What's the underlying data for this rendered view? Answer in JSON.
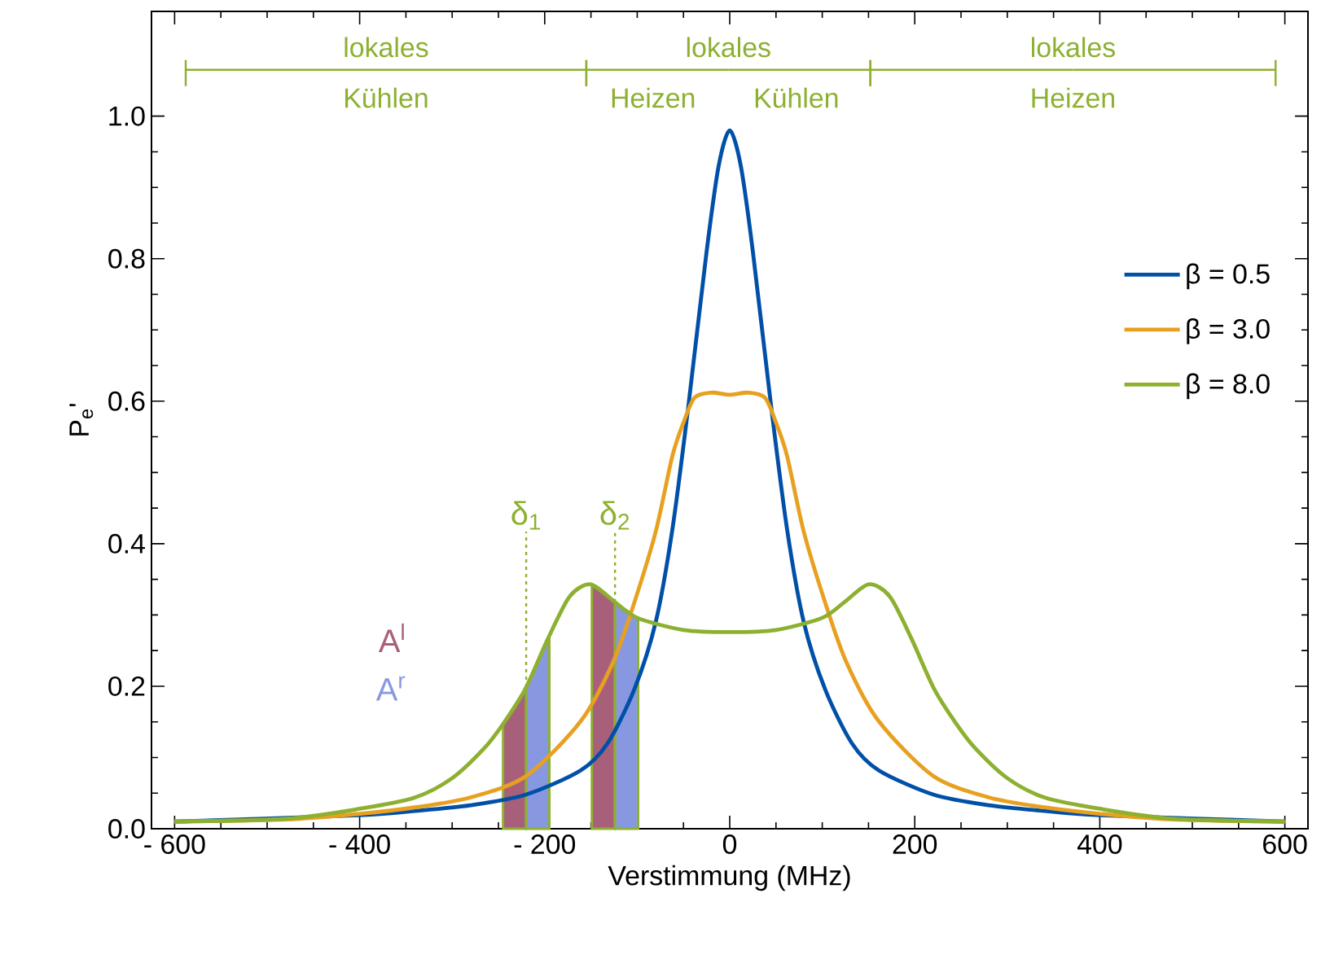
{
  "chart_data": {
    "type": "line",
    "xlabel": "Verstimmung (MHz)",
    "ylabel": "P$_{e}$'",
    "xlim": [
      -625,
      625
    ],
    "ylim": [
      0,
      1.147
    ],
    "xticks": [
      {
        "value": -600,
        "label": "- 600"
      },
      {
        "value": -400,
        "label": "- 400"
      },
      {
        "value": -200,
        "label": "- 200"
      },
      0,
      200,
      400,
      600
    ],
    "yticks": [
      {
        "value": 0,
        "label": "0.0"
      },
      {
        "value": 0.2,
        "label": "0.2"
      },
      {
        "value": 0.4,
        "label": "0.4"
      },
      {
        "value": 0.6,
        "label": "0.6"
      },
      {
        "value": 0.8,
        "label": "0.8"
      },
      {
        "value": 1,
        "label": "1.0"
      }
    ],
    "legend": "right",
    "series": [
      {
        "name": "β = 0.5",
        "color": "#0050a8",
        "x": [
          -600,
          -480,
          -400,
          -340,
          -280,
          -220,
          -161,
          -132,
          -103,
          -80,
          -62,
          -45,
          -25,
          -12,
          0,
          12,
          25,
          45,
          62,
          80,
          103,
          132,
          161,
          220,
          280,
          340,
          400,
          480,
          600
        ],
        "values": [
          0.01,
          null,
          0.019,
          0.025,
          0.033,
          0.048,
          0.082,
          0.12,
          0.196,
          0.29,
          0.42,
          0.59,
          0.81,
          0.93,
          0.98,
          0.93,
          0.81,
          0.59,
          0.42,
          0.29,
          0.196,
          0.12,
          0.082,
          0.048,
          0.033,
          0.025,
          0.019,
          null,
          0.01
        ]
      },
      {
        "name": "β = 3.0",
        "color": "#e8a020",
        "x": [
          -600,
          -480,
          -400,
          -340,
          -280,
          -220,
          -161,
          -126,
          -103,
          -80,
          -62,
          -50,
          -38,
          -20,
          0,
          20,
          38,
          50,
          62,
          80,
          103,
          126,
          161,
          220,
          280,
          340,
          400,
          480,
          600
        ],
        "values": [
          0.01,
          0.013,
          0.021,
          0.03,
          0.044,
          0.074,
          0.151,
          0.234,
          0.318,
          0.417,
          0.523,
          0.57,
          0.605,
          0.612,
          0.609,
          0.612,
          0.605,
          0.57,
          0.523,
          0.417,
          0.318,
          0.234,
          0.151,
          0.074,
          0.044,
          0.03,
          0.021,
          0.013,
          0.01
        ]
      },
      {
        "name": "β = 8.0",
        "color": "#8db030",
        "x": [
          -600,
          -480,
          -400,
          -340,
          -300,
          -266,
          -245,
          -221,
          -196,
          -173,
          -150,
          -124,
          -100,
          -50,
          0,
          50,
          100,
          124,
          150,
          173,
          196,
          221,
          245,
          266,
          300,
          340,
          400,
          480,
          600
        ],
        "values": [
          0.01,
          0.014,
          0.028,
          0.044,
          0.071,
          0.112,
          0.147,
          0.196,
          0.268,
          0.326,
          0.343,
          0.318,
          0.296,
          0.279,
          0.276,
          0.279,
          0.296,
          0.318,
          0.343,
          0.326,
          0.268,
          0.196,
          0.147,
          0.112,
          0.071,
          0.044,
          0.028,
          0.014,
          0.01
        ]
      }
    ],
    "bands": [
      {
        "axis": "x",
        "from": -245,
        "to": -220,
        "color": "#a8607a",
        "label": "A$^{l}$"
      },
      {
        "axis": "x",
        "from": -220,
        "to": -195,
        "color": "#8898e0",
        "label": "A$^{r}$"
      },
      {
        "axis": "x",
        "from": -149,
        "to": -124,
        "color": "#a8607a"
      },
      {
        "axis": "x",
        "from": -124,
        "to": -99,
        "color": "#8898e0"
      }
    ],
    "ref_lines": [
      {
        "axis": "x",
        "value": -220,
        "label": "δ$_{1}$",
        "color": "#8db030",
        "line_style": "dotted"
      },
      {
        "axis": "x",
        "value": -124,
        "label": "δ$_{2}$",
        "color": "#8db030",
        "line_style": "dotted"
      }
    ],
    "annotations": [
      "lokales",
      "lokales",
      "lokales",
      "Kühlen",
      "Heizen",
      "Kühlen",
      "Heizen"
    ]
  }
}
